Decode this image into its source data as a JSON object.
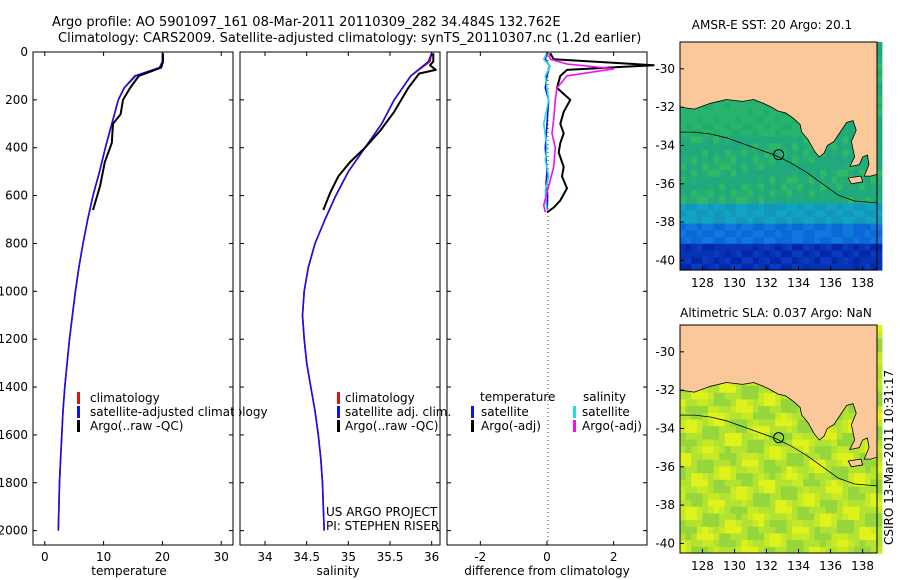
{
  "header": {
    "title_line1": "Argo profile: AO 5901097_161 08-Mar-2011 20110309_282 34.484S 132.762E",
    "title_line2": "Climatology: CARS2009. Satellite-adjusted climatology: synTS_20110307.nc (1.2d earlier)"
  },
  "side_stamp": "CSIRO 13-Mar-2011 10:31:17",
  "colors": {
    "climatology": "#dd1111",
    "satellite": "#1111ee",
    "argo": "#000000",
    "satellite_salinity": "#22dddd",
    "argo_adj_salinity": "#ee11ee",
    "land": "#fbc89a"
  },
  "chart_data": [
    {
      "type": "line",
      "id": "temperature",
      "xlabel": "temperature",
      "ylabel": "",
      "xlim": [
        -2,
        32
      ],
      "ylim": [
        2060,
        0
      ],
      "xticks": [
        0,
        10,
        20,
        30
      ],
      "yticks": [
        0,
        200,
        400,
        600,
        800,
        1000,
        1200,
        1400,
        1600,
        1800,
        2000
      ],
      "legend": [
        "climatology",
        "satellite-adjusted climatology",
        "Argo(..raw -QC)"
      ],
      "series": [
        {
          "name": "climatology",
          "color": "#dd1111",
          "x": [
            20,
            20,
            19.5,
            15.5,
            13.5,
            12.5,
            11.4,
            10.3,
            9.3,
            8.2,
            7.3,
            6.5,
            5.8,
            5.2,
            4.7,
            4.2,
            3.8,
            3.4,
            3.1,
            2.9,
            2.7,
            2.5,
            2.3
          ],
          "y": [
            5,
            40,
            65,
            100,
            150,
            200,
            300,
            400,
            500,
            600,
            700,
            800,
            900,
            1000,
            1100,
            1200,
            1300,
            1400,
            1500,
            1600,
            1700,
            1800,
            2000
          ]
        },
        {
          "name": "satellite-adjusted climatology",
          "color": "#1111ee",
          "x": [
            20,
            20,
            19.5,
            15.3,
            13.5,
            12.5,
            11.4,
            10.3,
            9.3,
            8.2,
            7.3,
            6.5,
            5.8,
            5.2,
            4.7,
            4.2,
            3.8,
            3.4,
            3.1,
            2.9,
            2.7,
            2.5,
            2.3
          ],
          "y": [
            5,
            40,
            65,
            100,
            150,
            200,
            300,
            400,
            500,
            600,
            700,
            800,
            900,
            1000,
            1100,
            1200,
            1300,
            1400,
            1500,
            1600,
            1700,
            1800,
            2000
          ]
        },
        {
          "name": "Argo(..raw -QC)",
          "color": "#000000",
          "x": [
            20.1,
            20.1,
            19.8,
            16.0,
            14.5,
            13.3,
            12.9,
            11.6,
            11.4,
            10.2,
            9.4,
            8.2
          ],
          "y": [
            5,
            40,
            65,
            100,
            150,
            200,
            260,
            300,
            380,
            460,
            560,
            660
          ]
        }
      ]
    },
    {
      "type": "line",
      "id": "salinity",
      "xlabel": "salinity",
      "ylabel": "",
      "xlim": [
        33.7,
        36.1
      ],
      "ylim": [
        2060,
        0
      ],
      "xticks": [
        34,
        34.5,
        35,
        35.5,
        36
      ],
      "yticks": [
        0,
        200,
        400,
        600,
        800,
        1000,
        1200,
        1400,
        1600,
        1800,
        2000
      ],
      "legend": [
        "climatology",
        "satellite adj. clim.",
        "Argo(..raw -QC)"
      ],
      "annotation": [
        "US ARGO PROJECT",
        "PI: STEPHEN RISER"
      ],
      "series": [
        {
          "name": "climatology",
          "color": "#dd1111",
          "x": [
            36.0,
            35.98,
            35.75,
            35.55,
            35.4,
            35.2,
            35.0,
            34.85,
            34.72,
            34.6,
            34.52,
            34.47,
            34.45,
            34.47,
            34.5,
            34.55,
            34.6,
            34.64,
            34.67,
            34.69,
            34.7,
            34.71
          ],
          "y": [
            5,
            40,
            100,
            200,
            300,
            400,
            500,
            600,
            700,
            800,
            900,
            1000,
            1100,
            1200,
            1300,
            1400,
            1500,
            1600,
            1700,
            1800,
            1900,
            2000
          ]
        },
        {
          "name": "satellite adj. clim.",
          "color": "#1111ee",
          "x": [
            36.0,
            35.96,
            35.75,
            35.55,
            35.4,
            35.2,
            35.0,
            34.85,
            34.72,
            34.6,
            34.52,
            34.47,
            34.45,
            34.47,
            34.5,
            34.55,
            34.6,
            34.64,
            34.67,
            34.69,
            34.7,
            34.71
          ],
          "y": [
            5,
            40,
            100,
            200,
            300,
            400,
            500,
            600,
            700,
            800,
            900,
            1000,
            1100,
            1200,
            1300,
            1400,
            1500,
            1600,
            1700,
            1800,
            1900,
            2000
          ]
        },
        {
          "name": "Argo(..raw -QC)",
          "color": "#000000",
          "x": [
            36.02,
            36.02,
            35.98,
            36.05,
            35.85,
            35.72,
            35.55,
            35.38,
            35.2,
            35.02,
            34.88,
            34.78,
            34.7
          ],
          "y": [
            5,
            40,
            55,
            75,
            90,
            150,
            250,
            330,
            400,
            460,
            520,
            590,
            660
          ]
        }
      ]
    },
    {
      "type": "line",
      "id": "difference",
      "xlabel": "difference from climatology",
      "ylabel": "",
      "xlim": [
        -3,
        3
      ],
      "ylim": [
        2060,
        0
      ],
      "xticks": [
        -2,
        0,
        2
      ],
      "yticks": [
        0,
        200,
        400,
        600,
        800,
        1000,
        1200,
        1400,
        1600,
        1800,
        2000
      ],
      "legend_headers": [
        "temperature",
        "salinity"
      ],
      "legend": [
        "satellite",
        "Argo(-adj)",
        "satellite",
        "Argo(-adj)"
      ],
      "series": [
        {
          "name": "satellite",
          "group": "temperature",
          "color": "#1111ee",
          "x": [
            0,
            -0.05,
            0.08,
            0.0,
            -0.05,
            0.05,
            0.0,
            -0.05,
            0.0,
            -0.03,
            0.02,
            0.0
          ],
          "y": [
            5,
            30,
            60,
            100,
            150,
            200,
            300,
            400,
            500,
            550,
            600,
            660
          ]
        },
        {
          "name": "Argo(-adj)",
          "group": "temperature",
          "color": "#000000",
          "x": [
            0.1,
            0.2,
            3.2,
            0.6,
            0.4,
            0.3,
            0.7,
            0.5,
            0.4,
            0.5,
            0.4,
            0.35,
            0.5,
            0.45,
            0.6,
            0.4,
            0.2,
            0.0
          ],
          "y": [
            5,
            30,
            55,
            75,
            100,
            150,
            200,
            250,
            300,
            340,
            380,
            420,
            480,
            520,
            570,
            620,
            650,
            670
          ]
        },
        {
          "name": "satellite",
          "group": "salinity",
          "color": "#22dddd",
          "x": [
            0,
            -0.1,
            0.1,
            -0.05,
            0.05,
            -0.1,
            0.0,
            -0.05,
            0.05,
            -0.05,
            -0.03,
            0.0
          ],
          "y": [
            5,
            30,
            60,
            100,
            200,
            300,
            400,
            450,
            520,
            580,
            630,
            660
          ]
        },
        {
          "name": "Argo(-adj)",
          "group": "salinity",
          "color": "#ee11ee",
          "x": [
            0.05,
            0.1,
            0.6,
            2.0,
            0.6,
            0.3,
            0.25,
            0.2,
            0.15,
            0.25,
            0.2,
            0.05,
            -0.1,
            -0.05
          ],
          "y": [
            5,
            30,
            50,
            70,
            100,
            150,
            200,
            280,
            340,
            400,
            480,
            560,
            640,
            670
          ]
        }
      ]
    },
    {
      "type": "heatmap",
      "id": "sst_map",
      "title": "AMSR-E SST: 20  Argo: 20.1",
      "xlim": [
        126.6,
        138.9
      ],
      "ylim": [
        -40.5,
        -28.6
      ],
      "xticks": [
        128,
        130,
        132,
        134,
        136,
        138
      ],
      "yticks": [
        -30,
        -32,
        -34,
        -36,
        -38,
        -40
      ],
      "marker": {
        "lon": 132.76,
        "lat": -34.48
      }
    },
    {
      "type": "heatmap",
      "id": "sla_map",
      "title": "Altimetric SLA: 0.037  Argo: NaN",
      "xlim": [
        126.6,
        138.9
      ],
      "ylim": [
        -40.5,
        -28.6
      ],
      "xticks": [
        128,
        130,
        132,
        134,
        136,
        138
      ],
      "yticks": [
        -30,
        -32,
        -34,
        -36,
        -38,
        -40
      ],
      "marker": {
        "lon": 132.76,
        "lat": -34.48
      }
    }
  ]
}
